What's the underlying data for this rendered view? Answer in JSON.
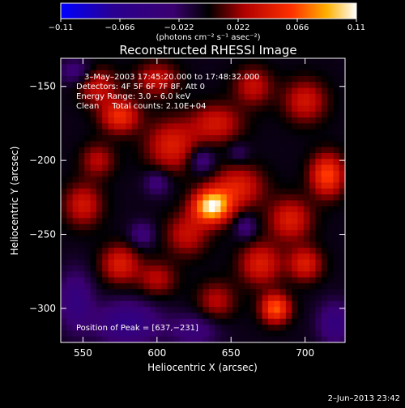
{
  "chart_data": {
    "type": "heatmap",
    "title": "Reconstructed RHESSI Image",
    "xlabel": "Heliocentric X (arcsec)",
    "ylabel": "Heliocentric Y (arcsec)",
    "xlim": [
      535,
      727
    ],
    "ylim": [
      -323,
      -131
    ],
    "x_ticks": [
      550,
      600,
      650,
      700
    ],
    "y_ticks": [
      -150,
      -200,
      -250,
      -300
    ],
    "x_tick_labels": [
      "550",
      "600",
      "650",
      "700"
    ],
    "y_tick_labels": [
      "−150",
      "−200",
      "−250",
      "−300"
    ],
    "colorbar": {
      "min": -0.11,
      "max": 0.11,
      "ticks": [
        -0.11,
        -0.066,
        -0.022,
        0.022,
        0.066,
        0.11
      ],
      "tick_labels": [
        "−0.11",
        "−0.066",
        "−0.022",
        "0.022",
        "0.066",
        "0.11"
      ],
      "unit_text": "photons cm⁻² s⁻¹ asec⁻²",
      "colors": [
        "#0000ff",
        "#2a0090",
        "#3a0070",
        "#000000",
        "#b00000",
        "#ff3000",
        "#ffb000",
        "#ffffff"
      ]
    },
    "annotations": [
      "3–May–2003 17:45:20.000 to 17:48:32.000",
      "Detectors: 4F 5F 6F 7F 8F, Att 0",
      "Energy Range: 3.0 – 6.0 keV",
      "Clean     Total counts: 2.10E+04",
      "Position of Peak = [637,−231]"
    ],
    "peak": {
      "x": 637,
      "y": -231,
      "value": 0.11
    },
    "blobs": [
      {
        "x": 637,
        "y": -231,
        "amp": 0.11,
        "sx": 9,
        "sy": 8
      },
      {
        "x": 655,
        "y": -218,
        "amp": 0.05,
        "sx": 12,
        "sy": 10
      },
      {
        "x": 620,
        "y": -250,
        "amp": 0.04,
        "sx": 10,
        "sy": 10
      },
      {
        "x": 575,
        "y": -170,
        "amp": 0.06,
        "sx": 9,
        "sy": 8
      },
      {
        "x": 560,
        "y": -150,
        "amp": 0.04,
        "sx": 9,
        "sy": 9
      },
      {
        "x": 610,
        "y": -190,
        "amp": 0.05,
        "sx": 12,
        "sy": 12
      },
      {
        "x": 640,
        "y": -175,
        "amp": 0.045,
        "sx": 12,
        "sy": 9
      },
      {
        "x": 600,
        "y": -145,
        "amp": 0.04,
        "sx": 10,
        "sy": 8
      },
      {
        "x": 665,
        "y": -150,
        "amp": 0.04,
        "sx": 9,
        "sy": 9
      },
      {
        "x": 700,
        "y": -160,
        "amp": 0.045,
        "sx": 10,
        "sy": 10
      },
      {
        "x": 715,
        "y": -210,
        "amp": 0.07,
        "sx": 8,
        "sy": 10
      },
      {
        "x": 690,
        "y": -240,
        "amp": 0.05,
        "sx": 10,
        "sy": 10
      },
      {
        "x": 670,
        "y": -270,
        "amp": 0.05,
        "sx": 10,
        "sy": 10
      },
      {
        "x": 680,
        "y": -300,
        "amp": 0.075,
        "sx": 7,
        "sy": 7
      },
      {
        "x": 700,
        "y": -270,
        "amp": 0.05,
        "sx": 8,
        "sy": 8
      },
      {
        "x": 550,
        "y": -230,
        "amp": 0.045,
        "sx": 9,
        "sy": 10
      },
      {
        "x": 575,
        "y": -270,
        "amp": 0.05,
        "sx": 9,
        "sy": 9
      },
      {
        "x": 560,
        "y": -200,
        "amp": 0.035,
        "sx": 8,
        "sy": 8
      },
      {
        "x": 600,
        "y": -280,
        "amp": 0.035,
        "sx": 9,
        "sy": 8
      },
      {
        "x": 640,
        "y": -295,
        "amp": 0.035,
        "sx": 9,
        "sy": 9
      },
      {
        "x": 600,
        "y": -215,
        "amp": -0.03,
        "sx": 6,
        "sy": 6
      },
      {
        "x": 630,
        "y": -200,
        "amp": -0.035,
        "sx": 6,
        "sy": 6
      },
      {
        "x": 590,
        "y": -250,
        "amp": -0.03,
        "sx": 6,
        "sy": 6
      },
      {
        "x": 660,
        "y": -245,
        "amp": -0.03,
        "sx": 5,
        "sy": 6
      },
      {
        "x": 580,
        "y": -310,
        "amp": -0.05,
        "sx": 15,
        "sy": 10
      },
      {
        "x": 545,
        "y": -295,
        "amp": -0.04,
        "sx": 8,
        "sy": 14
      },
      {
        "x": 720,
        "y": -310,
        "amp": -0.04,
        "sx": 8,
        "sy": 10
      },
      {
        "x": 545,
        "y": -140,
        "amp": -0.03,
        "sx": 8,
        "sy": 6
      },
      {
        "x": 625,
        "y": -315,
        "amp": -0.03,
        "sx": 12,
        "sy": 8
      },
      {
        "x": 655,
        "y": -195,
        "amp": -0.02,
        "sx": 5,
        "sy": 5
      }
    ]
  },
  "footer": {
    "timestamp": "2–Jun–2013 23:42"
  }
}
